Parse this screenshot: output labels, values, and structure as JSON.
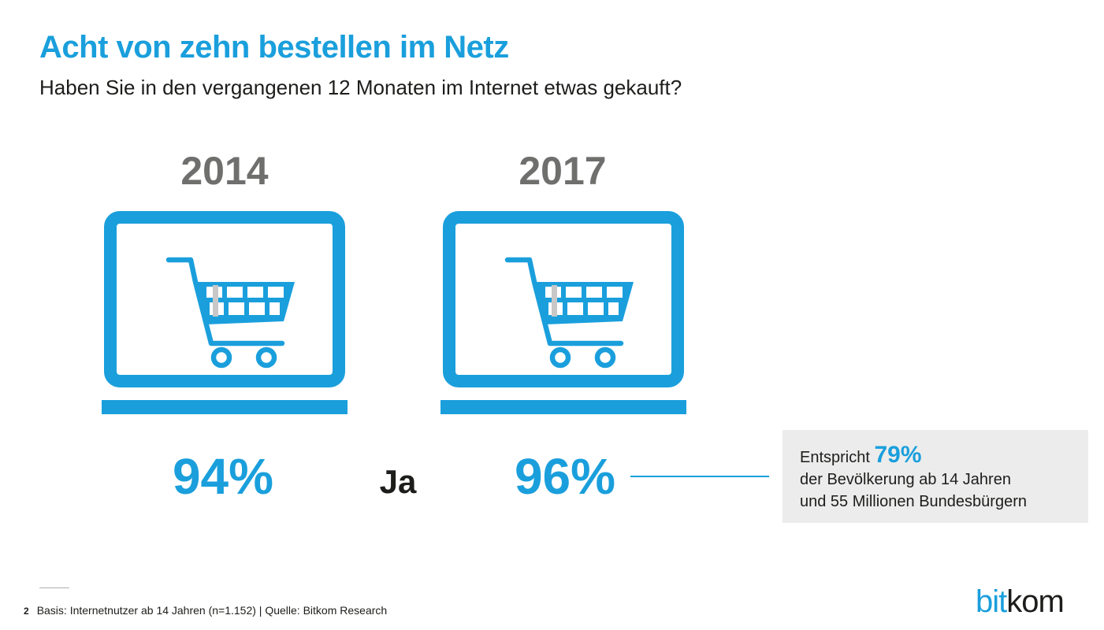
{
  "colors": {
    "accent": "#1a9fdc",
    "text": "#1d1d1b",
    "year": "#6f6f6e",
    "box": "#ececec"
  },
  "chart_data": {
    "type": "pictogram-comparison",
    "title": "Acht von zehn bestellen im Netz",
    "subtitle": "Haben Sie in den vergangenen 12 Monaten im Internet etwas gekauft?",
    "categories": [
      "2014",
      "2017"
    ],
    "series": [
      {
        "name": "Ja",
        "values": [
          94,
          96
        ]
      }
    ],
    "value_labels": [
      "94%",
      "96%"
    ],
    "series_label": "Ja",
    "icon": "shopping-cart-icon",
    "annotation": {
      "prefix": "Entspricht",
      "highlight": "79%",
      "line2": "der Bevölkerung ab 14 Jahren",
      "line3": "und 55 Millionen Bundesbürgern"
    }
  },
  "footer": {
    "page_number": "2",
    "source": "Basis: Internetnutzer ab 14 Jahren (n=1.152) | Quelle: Bitkom Research"
  },
  "logo": {
    "part1": "bit",
    "part2": "kom"
  }
}
